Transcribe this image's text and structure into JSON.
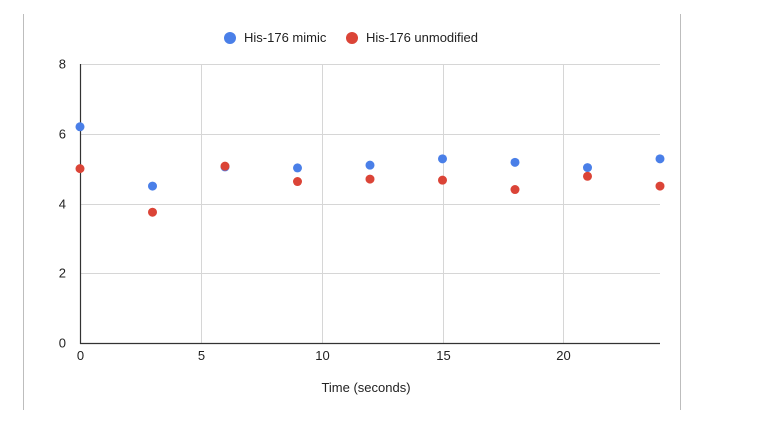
{
  "chart_data": {
    "type": "scatter",
    "title": "",
    "xlabel": "Time (seconds)",
    "ylabel": "",
    "xlim": [
      0,
      24
    ],
    "ylim": [
      0,
      8
    ],
    "xticks": [
      0,
      5,
      10,
      15,
      20
    ],
    "yticks": [
      0,
      2,
      4,
      6,
      8
    ],
    "grid": true,
    "legend_position": "top-center",
    "series": [
      {
        "name": "His-176 mimic",
        "color": "#4a7fe8",
        "x": [
          0,
          3,
          6,
          9,
          12,
          15,
          18,
          21,
          24
        ],
        "y": [
          6.2,
          4.5,
          5.05,
          5.02,
          5.1,
          5.28,
          5.18,
          5.03,
          5.28
        ]
      },
      {
        "name": "His-176 unmodified",
        "color": "#db4437",
        "x": [
          0,
          3,
          6,
          9,
          12,
          15,
          18,
          21,
          24
        ],
        "y": [
          5.0,
          3.75,
          5.07,
          4.63,
          4.7,
          4.67,
          4.4,
          4.78,
          4.5
        ]
      }
    ]
  }
}
